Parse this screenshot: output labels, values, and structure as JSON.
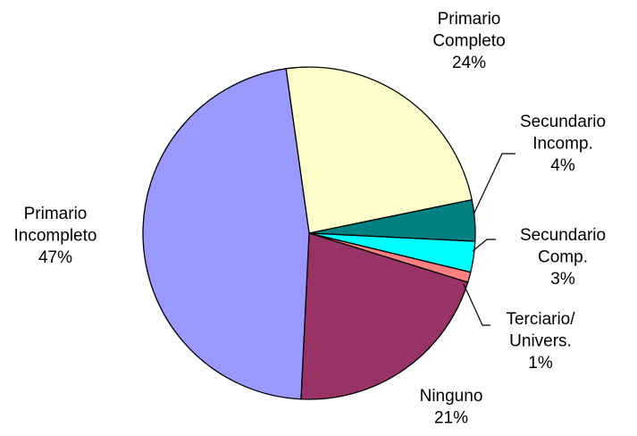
{
  "chart_data": {
    "type": "pie",
    "categories": [
      "Primario Completo",
      "Secundario Incomp.",
      "Secundario Comp.",
      "Terciario/ Univers.",
      "Ninguno",
      "Primario Incompleto"
    ],
    "values": [
      24,
      4,
      3,
      1,
      21,
      47
    ],
    "value_labels": [
      "24%",
      "4%",
      "3%",
      "1%",
      "21%",
      "47%"
    ],
    "colors": [
      "#ffffcc",
      "#008080",
      "#00ffff",
      "#ff8080",
      "#993366",
      "#9999ff"
    ]
  }
}
